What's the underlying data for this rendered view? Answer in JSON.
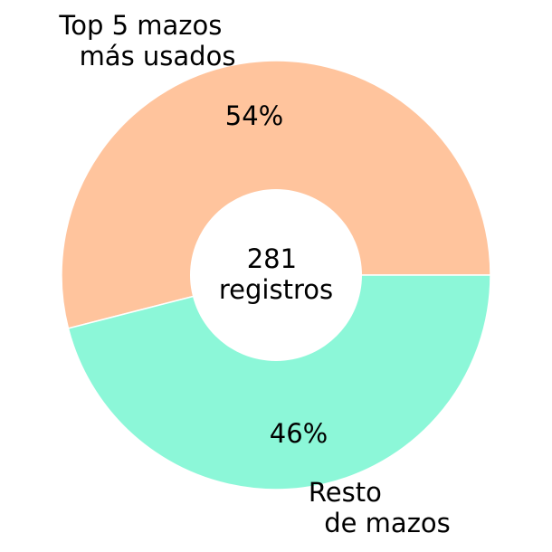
{
  "chart_data": {
    "type": "pie",
    "donut": true,
    "categories": [
      "Top 5 mazos más usados",
      "Resto de mazos"
    ],
    "values": [
      54,
      46
    ],
    "percent_labels": [
      "54%",
      "46%"
    ],
    "colors": [
      "#ffc49d",
      "#8cf7d8"
    ],
    "slice_labels": [
      [
        "Top 5 mazos",
        "más usados"
      ],
      [
        "Resto",
        "de mazos"
      ]
    ],
    "center_label": [
      "281",
      "registros"
    ]
  }
}
